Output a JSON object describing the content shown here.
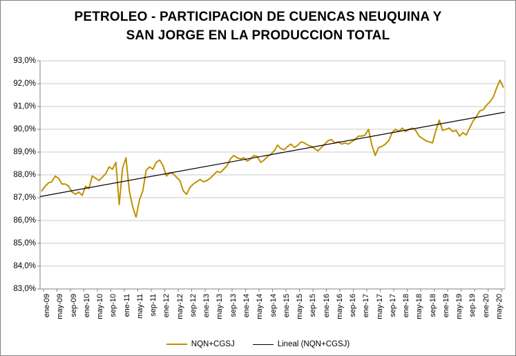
{
  "window": {
    "background_color": "#FFFFFF",
    "border_color": "#808080"
  },
  "title_lines": [
    "PETROLEO - PARTICIPACION DE CUENCAS NEUQUINA Y",
    "SAN JORGE EN LA PRODUCCION TOTAL"
  ],
  "chart_data": {
    "type": "line",
    "title": "PETROLEO - PARTICIPACION DE CUENCAS NEUQUINA Y SAN JORGE EN LA PRODUCCION TOTAL",
    "ylabel": "",
    "xlabel": "",
    "ylim": [
      83,
      93
    ],
    "y_tick_step_percent": 1.0,
    "grid": true,
    "legend_position": "bottom",
    "y_tick_labels": [
      "93,0%",
      "92,0%",
      "91,0%",
      "90,0%",
      "89,0%",
      "88,0%",
      "87,0%",
      "86,0%",
      "85,0%",
      "84,0%",
      "83,0%"
    ],
    "x_tick_labels": [
      "ene-09",
      "may-09",
      "sep-09",
      "ene-10",
      "may-10",
      "sep-10",
      "ene-11",
      "may-11",
      "sep-11",
      "ene-12",
      "may-12",
      "sep-12",
      "ene-13",
      "may-13",
      "sep-13",
      "ene-14",
      "may-14",
      "sep-14",
      "ene-15",
      "may-15",
      "sep-15",
      "ene-16",
      "may-16",
      "sep-16",
      "ene-17",
      "may-17",
      "sep-17",
      "ene-18",
      "may-18",
      "sep-18",
      "ene-19",
      "may-19",
      "sep-19",
      "ene-20",
      "may-20"
    ],
    "months": [
      "ene-09",
      "feb-09",
      "mar-09",
      "abr-09",
      "may-09",
      "jun-09",
      "jul-09",
      "ago-09",
      "sep-09",
      "oct-09",
      "nov-09",
      "dic-09",
      "ene-10",
      "feb-10",
      "mar-10",
      "abr-10",
      "may-10",
      "jun-10",
      "jul-10",
      "ago-10",
      "sep-10",
      "oct-10",
      "nov-10",
      "dic-10",
      "ene-11",
      "feb-11",
      "mar-11",
      "abr-11",
      "may-11",
      "jun-11",
      "jul-11",
      "ago-11",
      "sep-11",
      "oct-11",
      "nov-11",
      "dic-11",
      "ene-12",
      "feb-12",
      "mar-12",
      "abr-12",
      "may-12",
      "jun-12",
      "jul-12",
      "ago-12",
      "sep-12",
      "oct-12",
      "nov-12",
      "dic-12",
      "ene-13",
      "feb-13",
      "mar-13",
      "abr-13",
      "may-13",
      "jun-13",
      "jul-13",
      "ago-13",
      "sep-13",
      "oct-13",
      "nov-13",
      "dic-13",
      "ene-14",
      "feb-14",
      "mar-14",
      "abr-14",
      "may-14",
      "jun-14",
      "jul-14",
      "ago-14",
      "sep-14",
      "oct-14",
      "nov-14",
      "dic-14",
      "ene-15",
      "feb-15",
      "mar-15",
      "abr-15",
      "may-15",
      "jun-15",
      "jul-15",
      "ago-15",
      "sep-15",
      "oct-15",
      "nov-15",
      "dic-15",
      "ene-16",
      "feb-16",
      "mar-16",
      "abr-16",
      "may-16",
      "jun-16",
      "jul-16",
      "ago-16",
      "sep-16",
      "oct-16",
      "nov-16",
      "dic-16",
      "ene-17",
      "feb-17",
      "mar-17",
      "abr-17",
      "may-17",
      "jun-17",
      "jul-17",
      "ago-17",
      "sep-17",
      "oct-17",
      "nov-17",
      "dic-17",
      "ene-18",
      "feb-18",
      "mar-18",
      "abr-18",
      "may-18",
      "jun-18",
      "jul-18",
      "ago-18",
      "sep-18",
      "oct-18",
      "nov-18",
      "dic-18",
      "ene-19",
      "feb-19",
      "mar-19",
      "abr-19",
      "may-19",
      "jun-19",
      "jul-19",
      "ago-19",
      "sep-19",
      "oct-19",
      "nov-19",
      "dic-19",
      "ene-20",
      "feb-20",
      "mar-20",
      "abr-20",
      "may-20",
      "jun-20"
    ],
    "series": [
      {
        "name": "NQN+CGSJ",
        "color": "#BF9000",
        "values": [
          87.3,
          87.5,
          87.65,
          87.7,
          87.95,
          87.85,
          87.6,
          87.6,
          87.5,
          87.25,
          87.15,
          87.25,
          87.1,
          87.5,
          87.4,
          87.95,
          87.85,
          87.75,
          87.9,
          88.05,
          88.35,
          88.25,
          88.55,
          86.7,
          88.3,
          88.75,
          87.3,
          86.6,
          86.15,
          86.9,
          87.3,
          88.2,
          88.35,
          88.25,
          88.55,
          88.65,
          88.4,
          87.95,
          88.1,
          88.05,
          87.9,
          87.75,
          87.3,
          87.15,
          87.45,
          87.6,
          87.7,
          87.8,
          87.7,
          87.75,
          87.85,
          88.0,
          88.15,
          88.1,
          88.25,
          88.4,
          88.7,
          88.85,
          88.75,
          88.7,
          88.75,
          88.6,
          88.7,
          88.85,
          88.8,
          88.55,
          88.65,
          88.8,
          88.9,
          89.05,
          89.3,
          89.15,
          89.1,
          89.25,
          89.35,
          89.2,
          89.3,
          89.45,
          89.4,
          89.3,
          89.25,
          89.15,
          89.05,
          89.2,
          89.35,
          89.5,
          89.55,
          89.4,
          89.45,
          89.35,
          89.4,
          89.35,
          89.45,
          89.55,
          89.7,
          89.7,
          89.75,
          90.0,
          89.3,
          88.85,
          89.2,
          89.25,
          89.35,
          89.5,
          89.85,
          90.0,
          89.9,
          90.05,
          89.9,
          90.0,
          90.05,
          89.95,
          89.7,
          89.6,
          89.5,
          89.45,
          89.4,
          89.95,
          90.4,
          89.95,
          90.0,
          90.05,
          89.9,
          89.95,
          89.7,
          89.85,
          89.75,
          90.05,
          90.35,
          90.55,
          90.8,
          90.85,
          91.05,
          91.2,
          91.4,
          91.8,
          92.15,
          91.85
        ]
      },
      {
        "name": "Lineal (NQN+CGSJ)",
        "color": "#000000",
        "type": "linear_trend",
        "trend_start_percent": 87.05,
        "trend_end_percent": 90.75
      }
    ],
    "axis_color": "#808080",
    "gridline_color": "#C9C9C9"
  }
}
